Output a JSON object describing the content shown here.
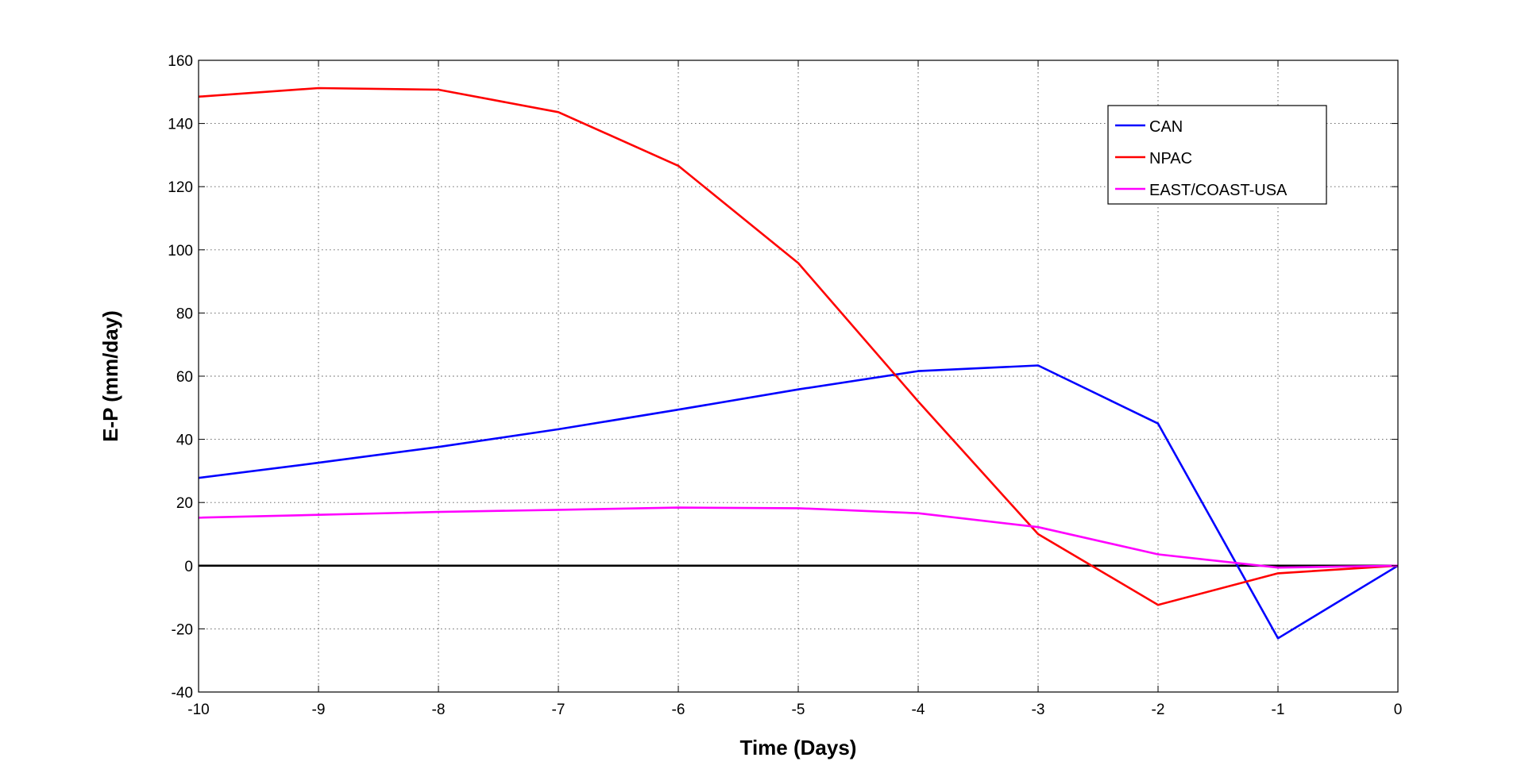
{
  "chart_data": {
    "type": "line",
    "title": "",
    "xlabel": "Time (Days)",
    "ylabel": "E-P (mm/day)",
    "xlim": [
      -10,
      0
    ],
    "ylim": [
      -40,
      160
    ],
    "x_ticks": [
      -10,
      -9,
      -8,
      -7,
      -6,
      -5,
      -4,
      -3,
      -2,
      -1,
      0
    ],
    "y_ticks": [
      -40,
      -20,
      0,
      20,
      40,
      60,
      80,
      100,
      120,
      140,
      160
    ],
    "x_tick_labels": [
      "-10",
      "-9",
      "-8",
      "-7",
      "-6",
      "-5",
      "-4",
      "-3",
      "-2",
      "-1",
      "0"
    ],
    "y_tick_labels": [
      "-40",
      "-20",
      "0",
      "20",
      "40",
      "60",
      "80",
      "100",
      "120",
      "140",
      "160"
    ],
    "grid": true,
    "grid_style": "dotted",
    "zero_line": true,
    "legend_position": "top-right",
    "x": [
      -10,
      -9,
      -8,
      -7,
      -6,
      -5,
      -4,
      -3,
      -2,
      -1,
      0
    ],
    "series": [
      {
        "name": "CAN",
        "color": "#0000ff",
        "values": [
          27.8,
          32.6,
          37.6,
          43.2,
          49.4,
          55.8,
          61.6,
          63.4,
          45.0,
          -23.0,
          0.0
        ]
      },
      {
        "name": "NPAC",
        "color": "#ff0000",
        "values": [
          148.5,
          151.2,
          150.7,
          143.6,
          126.6,
          95.8,
          52.0,
          10.0,
          -12.4,
          -2.4,
          0.0
        ]
      },
      {
        "name": "EAST/COAST-USA",
        "color": "#ff00ff",
        "values": [
          15.2,
          16.1,
          17.0,
          17.7,
          18.4,
          18.2,
          16.6,
          12.2,
          3.6,
          -0.6,
          0.0
        ]
      }
    ]
  }
}
